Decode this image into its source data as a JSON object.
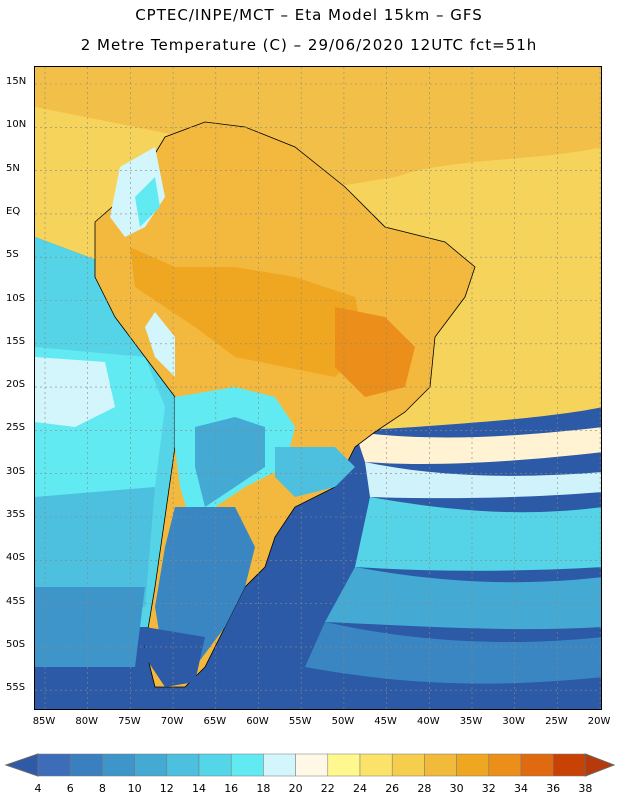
{
  "header": {
    "line1": "CPTEC/INPE/MCT –  Eta Model 15km – GFS",
    "line2": "2 Metre Temperature (C) – 29/06/2020 12UTC fct=51h"
  },
  "axes": {
    "lat_labels": [
      "15N",
      "10N",
      "5N",
      "EQ",
      "5S",
      "10S",
      "15S",
      "20S",
      "25S",
      "30S",
      "35S",
      "40S",
      "45S",
      "50S",
      "55S"
    ],
    "lon_labels": [
      "85W",
      "80W",
      "75W",
      "70W",
      "65W",
      "60W",
      "55W",
      "50W",
      "45W",
      "40W",
      "35W",
      "30W",
      "25W",
      "20W"
    ]
  },
  "colorbar": {
    "labels": [
      "4",
      "6",
      "8",
      "10",
      "12",
      "14",
      "16",
      "18",
      "20",
      "22",
      "24",
      "26",
      "28",
      "30",
      "32",
      "34",
      "36",
      "38"
    ],
    "colors": [
      "#3d6db8",
      "#3a7fc0",
      "#3e95c9",
      "#44aad4",
      "#4cc0de",
      "#54d6e8",
      "#62eaf2",
      "#d2f6fc",
      "#fff8e6",
      "#fff88e",
      "#fbe36a",
      "#f6ce4e",
      "#f1ba3a",
      "#efa620",
      "#ec8e1a",
      "#e06a10",
      "#c84206"
    ],
    "low_color": "#2f5aa8",
    "high_color": "#b83a0a"
  }
}
